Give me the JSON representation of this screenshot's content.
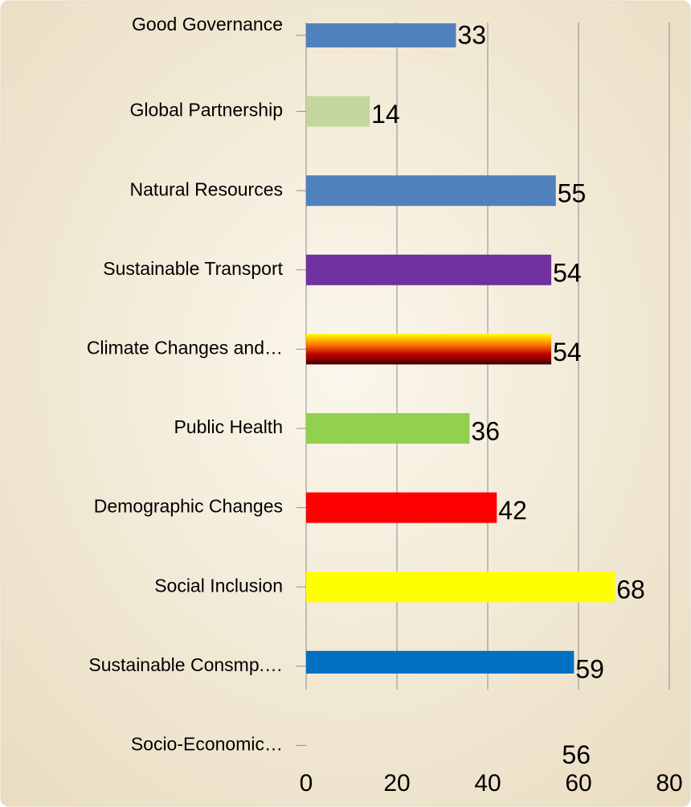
{
  "chart_data": {
    "type": "bar",
    "orientation": "horizontal",
    "categories": [
      "Good Governance",
      "Global Partnership",
      "Natural Resources",
      "Sustainable Transport",
      "Climate Changes and…",
      "Public Health",
      "Demographic Changes",
      "Social Inclusion",
      "Sustainable Consmp.…",
      "Socio-Economic…"
    ],
    "values": [
      33,
      14,
      55,
      54,
      54,
      36,
      42,
      68,
      59,
      56
    ],
    "colors": [
      "#4f81bd",
      "#c3d69b",
      "#4f81bd",
      "#7030a0",
      [
        "#ffff00",
        "#ff8000",
        "#c00000",
        "#400000"
      ],
      "#92d050",
      "#ff0000",
      "#ffff00",
      "#0070c0",
      [
        "#ff4000",
        "#ff9900",
        "#ffff00"
      ]
    ],
    "xlim": [
      0,
      80
    ],
    "xticks": [
      0,
      20,
      40,
      60,
      80
    ],
    "grid": true
  }
}
